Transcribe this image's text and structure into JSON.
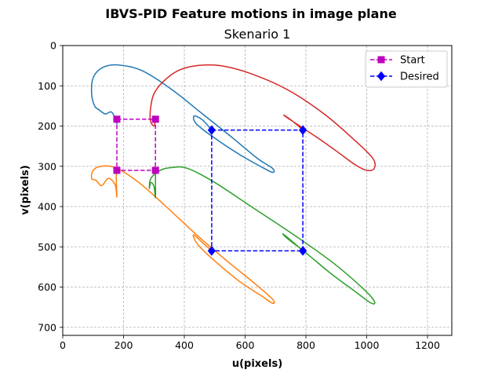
{
  "chart_data": {
    "type": "line",
    "suptitle": "IBVS-PID Feature motions in image plane",
    "title": "Skenario 1",
    "xlabel": "u(pixels)",
    "ylabel": "v(pixels)",
    "xlim": [
      0,
      1280
    ],
    "ylim": [
      720,
      0
    ],
    "x_ticks": [
      0,
      200,
      400,
      600,
      800,
      1000,
      1200
    ],
    "y_ticks": [
      0,
      100,
      200,
      300,
      400,
      500,
      600,
      700
    ],
    "grid": true,
    "legend_position": "top-right",
    "trajectories": [
      {
        "color": "#1f77b4",
        "points": [
          [
            178,
            196
          ],
          [
            175,
            185
          ],
          [
            160,
            165
          ],
          [
            140,
            170
          ],
          [
            120,
            160
          ],
          [
            105,
            150
          ],
          [
            95,
            120
          ],
          [
            100,
            80
          ],
          [
            130,
            55
          ],
          [
            180,
            48
          ],
          [
            260,
            62
          ],
          [
            360,
            110
          ],
          [
            460,
            170
          ],
          [
            560,
            230
          ],
          [
            640,
            280
          ],
          [
            690,
            305
          ],
          [
            690,
            315
          ],
          [
            650,
            300
          ],
          [
            580,
            270
          ],
          [
            500,
            230
          ],
          [
            440,
            195
          ],
          [
            432,
            175
          ],
          [
            460,
            185
          ],
          [
            490,
            210
          ]
        ]
      },
      {
        "color": "#d62728",
        "points": [
          [
            305,
            183
          ],
          [
            300,
            200
          ],
          [
            288,
            185
          ],
          [
            290,
            150
          ],
          [
            300,
            120
          ],
          [
            330,
            90
          ],
          [
            380,
            62
          ],
          [
            440,
            50
          ],
          [
            520,
            50
          ],
          [
            620,
            70
          ],
          [
            740,
            110
          ],
          [
            860,
            170
          ],
          [
            960,
            235
          ],
          [
            1020,
            280
          ],
          [
            1025,
            305
          ],
          [
            1000,
            310
          ],
          [
            960,
            295
          ],
          [
            900,
            262
          ],
          [
            840,
            230
          ],
          [
            780,
            200
          ],
          [
            740,
            180
          ],
          [
            728,
            173
          ],
          [
            760,
            190
          ],
          [
            790,
            210
          ]
        ]
      },
      {
        "color": "#ff7f0e",
        "points": [
          [
            178,
            310
          ],
          [
            176,
            330
          ],
          [
            178,
            376
          ],
          [
            172,
            345
          ],
          [
            150,
            330
          ],
          [
            128,
            348
          ],
          [
            110,
            335
          ],
          [
            95,
            330
          ],
          [
            100,
            310
          ],
          [
            125,
            300
          ],
          [
            175,
            304
          ],
          [
            250,
            340
          ],
          [
            340,
            400
          ],
          [
            440,
            470
          ],
          [
            540,
            535
          ],
          [
            630,
            590
          ],
          [
            690,
            630
          ],
          [
            690,
            640
          ],
          [
            650,
            620
          ],
          [
            580,
            585
          ],
          [
            500,
            535
          ],
          [
            445,
            495
          ],
          [
            430,
            470
          ],
          [
            460,
            490
          ],
          [
            490,
            510
          ]
        ]
      },
      {
        "color": "#2ca02c",
        "points": [
          [
            305,
            310
          ],
          [
            305,
            340
          ],
          [
            305,
            378
          ],
          [
            300,
            350
          ],
          [
            290,
            340
          ],
          [
            285,
            355
          ],
          [
            290,
            330
          ],
          [
            320,
            310
          ],
          [
            360,
            303
          ],
          [
            410,
            305
          ],
          [
            500,
            340
          ],
          [
            620,
            400
          ],
          [
            760,
            470
          ],
          [
            890,
            540
          ],
          [
            990,
            605
          ],
          [
            1025,
            635
          ],
          [
            1015,
            640
          ],
          [
            960,
            610
          ],
          [
            880,
            565
          ],
          [
            800,
            515
          ],
          [
            740,
            480
          ],
          [
            725,
            468
          ],
          [
            760,
            490
          ],
          [
            790,
            510
          ]
        ]
      }
    ],
    "series": [
      {
        "name": "Start",
        "color": "#bf00bf",
        "marker": "square",
        "points": [
          [
            178,
            183
          ],
          [
            305,
            183
          ],
          [
            305,
            310
          ],
          [
            178,
            310
          ],
          [
            178,
            183
          ]
        ]
      },
      {
        "name": "Desired",
        "color": "#0000ff",
        "marker": "diamond",
        "points": [
          [
            490,
            210
          ],
          [
            790,
            210
          ],
          [
            790,
            510
          ],
          [
            490,
            510
          ],
          [
            490,
            210
          ]
        ]
      }
    ]
  }
}
